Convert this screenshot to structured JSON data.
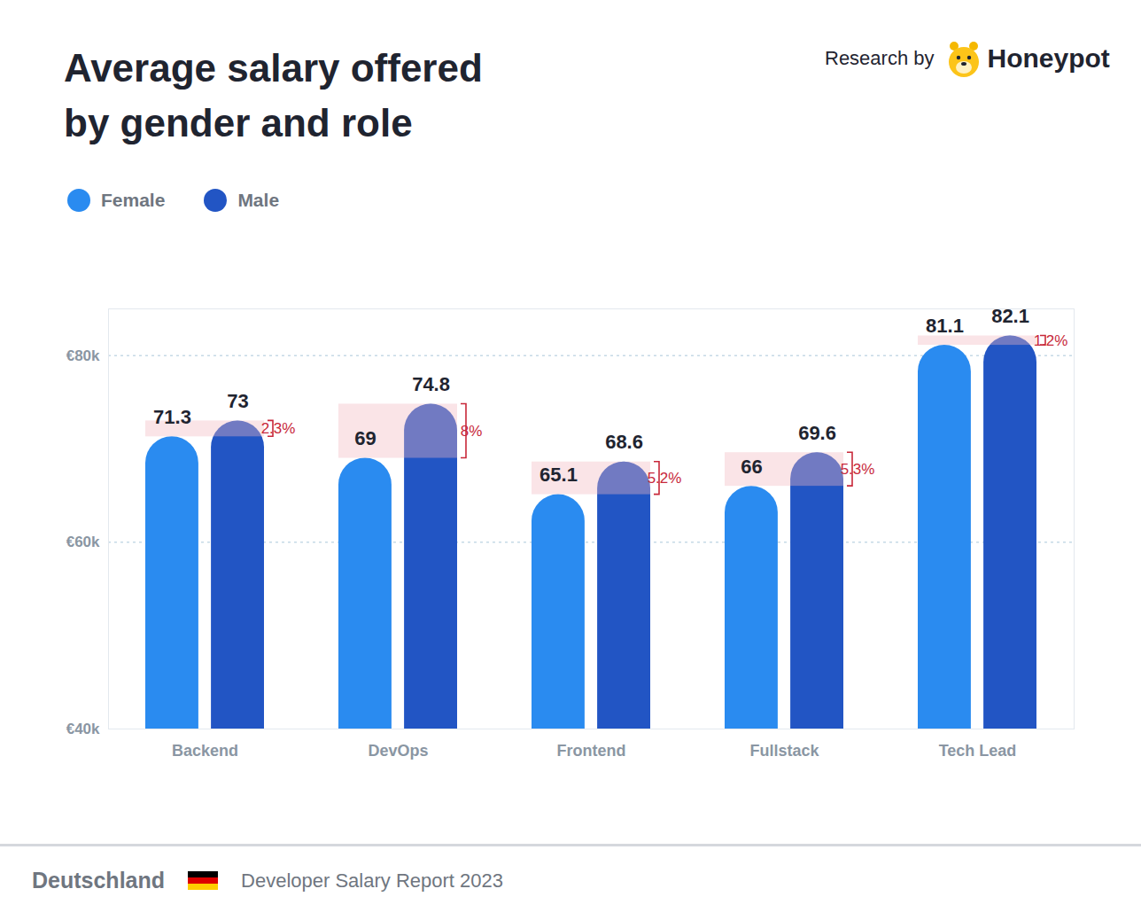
{
  "chart_data": {
    "type": "bar",
    "title": "Average salary offered\nby gender and role",
    "credit": "Research by",
    "brand": "Honeypot",
    "footer": {
      "country": "Deutschland",
      "report": "Developer Salary Report 2023"
    },
    "categories": [
      "Backend",
      "DevOps",
      "Frontend",
      "Fullstack",
      "Tech Lead"
    ],
    "series": [
      {
        "name": "Female",
        "color": "#2a8bf0",
        "values": [
          71.3,
          69,
          65.1,
          66,
          81.1
        ]
      },
      {
        "name": "Male",
        "color": "#2255c4",
        "values": [
          73,
          74.8,
          68.6,
          69.6,
          82.1
        ]
      }
    ],
    "gaps": {
      "values": [
        2.3,
        8,
        5.2,
        5.3,
        1.2
      ],
      "value_labels": [
        "2.3%",
        "8%",
        "5.2%",
        "5.3%",
        "1.2%"
      ]
    },
    "ylim": [
      40,
      85
    ],
    "yticks": [
      {
        "value": 40,
        "label": "€40k"
      },
      {
        "value": 60,
        "label": "€60k"
      },
      {
        "value": 80,
        "label": "€80k"
      }
    ],
    "grid": true,
    "data_labels": true,
    "legend": "top-left"
  }
}
